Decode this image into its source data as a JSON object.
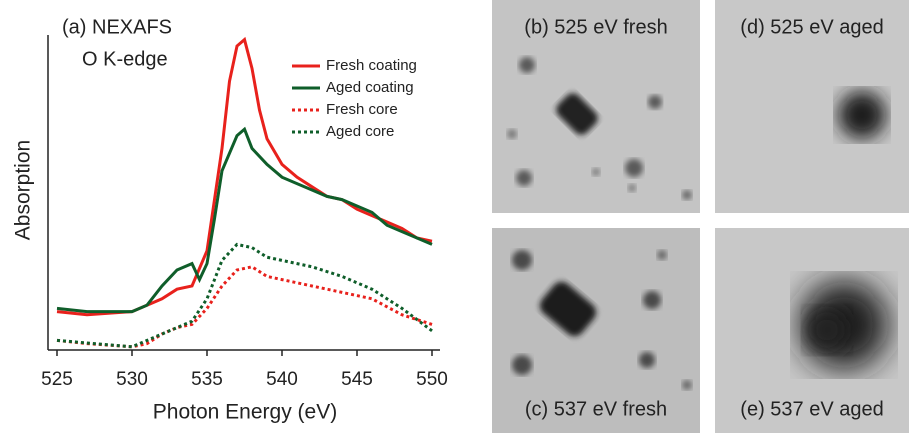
{
  "chart_data": {
    "type": "line",
    "annotations": [
      "(a) NEXAFS",
      "O K-edge"
    ],
    "x_label": "Photon Energy (eV)",
    "y_label": "Absorption",
    "xlim": [
      525,
      550
    ],
    "xticks": [
      525,
      530,
      535,
      540,
      545,
      550
    ],
    "ylim": [
      0,
      100
    ],
    "series": [
      {
        "name": "Fresh coating",
        "color": "#e8211c",
        "style": "solid",
        "x": [
          525,
          527,
          530,
          532,
          533,
          534,
          535,
          536,
          536.5,
          537,
          537.5,
          538,
          538.5,
          539,
          540,
          541,
          542,
          543,
          544,
          545,
          546,
          547,
          548,
          549,
          550
        ],
        "values": [
          12,
          11,
          12,
          16,
          19,
          20,
          31,
          63,
          84,
          95,
          97,
          88,
          75,
          66,
          58,
          54,
          51,
          48,
          47,
          44,
          42,
          40,
          38,
          35,
          34
        ]
      },
      {
        "name": "Aged coating",
        "color": "#0f5e2a",
        "style": "solid",
        "x": [
          525,
          527,
          530,
          531,
          532,
          533,
          534,
          534.5,
          535,
          535.5,
          536,
          537,
          537.5,
          538,
          539,
          540,
          541,
          542,
          543,
          544,
          545,
          546,
          547,
          548,
          549,
          550
        ],
        "values": [
          13,
          12,
          12,
          14,
          20,
          25,
          27,
          22,
          27,
          41,
          56,
          67,
          69,
          63,
          58,
          54,
          52,
          50,
          48,
          47,
          45,
          43,
          39,
          37,
          35,
          33
        ]
      },
      {
        "name": "Fresh core",
        "color": "#e8211c",
        "style": "dotted",
        "x": [
          525,
          527,
          530,
          531,
          532,
          533,
          534,
          535,
          536,
          537,
          538,
          539,
          540,
          542,
          544,
          546,
          548,
          550
        ],
        "values": [
          3,
          2,
          1,
          2,
          5,
          7,
          8,
          13,
          20,
          25,
          26,
          23,
          22,
          20,
          18,
          16,
          11,
          8
        ]
      },
      {
        "name": "Aged core",
        "color": "#0f5e2a",
        "style": "dotted",
        "x": [
          525,
          530,
          532,
          534,
          535,
          536,
          537,
          538,
          539,
          540,
          542,
          544,
          546,
          548,
          550
        ],
        "values": [
          3,
          1,
          5,
          9,
          16,
          28,
          33,
          32,
          29,
          28,
          26,
          23,
          19,
          13,
          6
        ]
      }
    ]
  },
  "panels": [
    {
      "label": "(b) 525 eV fresh"
    },
    {
      "label": "(d) 525 eV aged"
    },
    {
      "label": "(c) 537 eV fresh"
    },
    {
      "label": "(e) 537 eV aged"
    }
  ]
}
